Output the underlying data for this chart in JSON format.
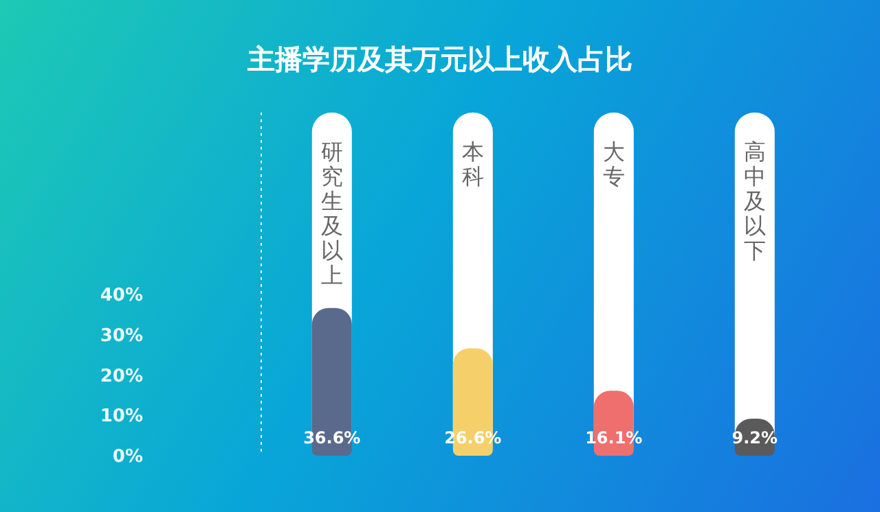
{
  "chart_data": {
    "type": "bar",
    "title": "主播学历及其万元以上收入占比",
    "categories": [
      "研究生及以上",
      "本科",
      "大专",
      "高中及以下"
    ],
    "values": [
      36.6,
      26.6,
      16.1,
      9.2
    ],
    "colors": [
      "#5a6a8c",
      "#f5d06a",
      "#ef6f6f",
      "#5a5a5a"
    ],
    "value_labels": [
      "36.6%",
      "26.6%",
      "16.1%",
      "9.2%"
    ],
    "ylim": [
      0,
      85
    ],
    "yticks": [
      {
        "value": 0,
        "label": "0%"
      },
      {
        "value": 10,
        "label": "10%"
      },
      {
        "value": 20,
        "label": "20%"
      },
      {
        "value": 30,
        "label": "30%"
      },
      {
        "value": 40,
        "label": "40%"
      }
    ],
    "grid": false,
    "legend": false
  }
}
